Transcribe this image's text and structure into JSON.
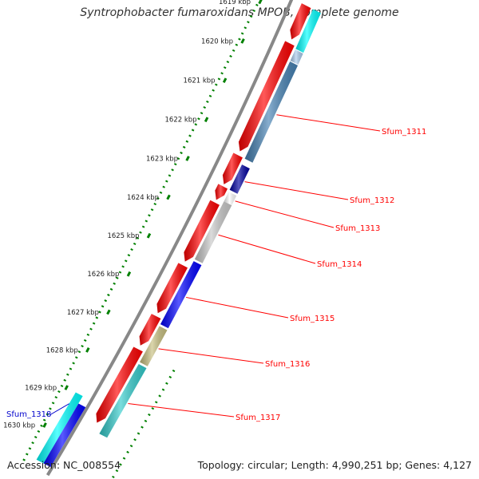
{
  "title": "Syntrophobacter fumaroxidans MPOB, complete genome",
  "footer": {
    "accession": "Accession: NC_008554",
    "stats": "Topology: circular; Length: 4,990,251 bp; Genes: 4,127"
  },
  "ruler": {
    "unit": "kbp",
    "ticks": [
      "1619 kbp",
      "1620 kbp",
      "1621 kbp",
      "1622 kbp",
      "1623 kbp",
      "1624 kbp",
      "1625 kbp",
      "1626 kbp",
      "1627 kbp",
      "1628 kbp",
      "1629 kbp",
      "1630 kbp"
    ]
  },
  "tracks": [
    {
      "name": "forward-cds",
      "color": "#ff0000",
      "features": [
        {
          "start": 1618.6,
          "end": 1619.45,
          "arrow": "end"
        },
        {
          "start": 1619.55,
          "end": 1622.3,
          "arrow": "end"
        },
        {
          "start": 1622.4,
          "end": 1623.15,
          "arrow": "end"
        },
        {
          "start": 1623.2,
          "end": 1623.55,
          "arrow": "end"
        },
        {
          "start": 1623.62,
          "end": 1625.15,
          "arrow": "end"
        },
        {
          "start": 1625.25,
          "end": 1626.5,
          "arrow": "end"
        },
        {
          "start": 1626.58,
          "end": 1627.35,
          "arrow": "end"
        },
        {
          "start": 1627.45,
          "end": 1629.4,
          "arrow": "end"
        }
      ]
    },
    {
      "name": "reverse-cds",
      "features": [
        {
          "start": 1618.6,
          "end": 1619.6,
          "color": "#00ffff",
          "label": ""
        },
        {
          "start": 1619.62,
          "end": 1619.9,
          "color": "#aaccee",
          "label": ""
        },
        {
          "start": 1619.92,
          "end": 1622.4,
          "color": "#4682b4",
          "label": "Sfum_1311"
        },
        {
          "start": 1622.55,
          "end": 1623.2,
          "color": "#0000a0",
          "label": "Sfum_1312"
        },
        {
          "start": 1623.25,
          "end": 1623.5,
          "color": "#ffffff",
          "label": "Sfum_1313"
        },
        {
          "start": 1623.5,
          "end": 1625.0,
          "color": "#c8c8c8",
          "label": "Sfum_1314"
        },
        {
          "start": 1625.05,
          "end": 1626.7,
          "color": "#0000ff",
          "label": "Sfum_1315"
        },
        {
          "start": 1626.75,
          "end": 1627.7,
          "color": "#c8c080",
          "label": "Sfum_1316"
        },
        {
          "start": 1627.75,
          "end": 1629.6,
          "color": "#33cccc",
          "label": "Sfum_1317"
        }
      ]
    },
    {
      "name": "outer-cds",
      "features": [
        {
          "start": 1629.0,
          "end": 1630.8,
          "color": "#00ffff",
          "label": "Sfum_1318",
          "labelColor": "#0000cc"
        },
        {
          "start": 1629.2,
          "end": 1630.8,
          "color": "#0000ff",
          "label": ""
        }
      ]
    }
  ],
  "colors": {
    "backbone": "#888888",
    "ruler": "#008000",
    "label_line": "#ff0000",
    "outer_label": "#0000cc"
  }
}
